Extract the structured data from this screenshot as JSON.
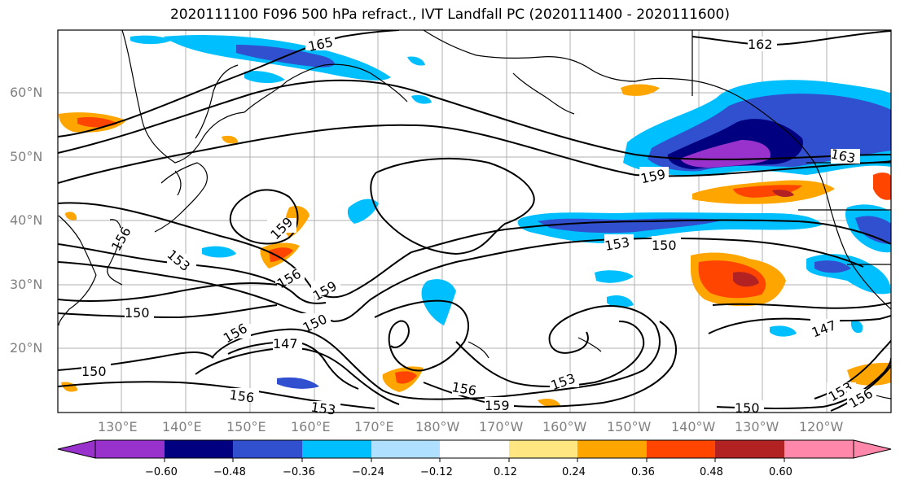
{
  "title": "2020111100 F096 500 hPa refract., IVT Landfall PC (2020111400 - 2020111600)",
  "lat_labels": [
    "60°N",
    "50°N",
    "40°N",
    "30°N",
    "20°N"
  ],
  "lon_labels": [
    "130°E",
    "140°E",
    "150°E",
    "160°E",
    "170°E",
    "180°W",
    "170°W",
    "160°W",
    "150°W",
    "140°W",
    "130°W",
    "120°W"
  ],
  "contour_labels": [
    "165",
    "162",
    "163",
    "159",
    "159",
    "156",
    "156",
    "153",
    "153",
    "150",
    "150",
    "159",
    "150",
    "147",
    "156",
    "150",
    "156",
    "153",
    "156",
    "159",
    "153",
    "147",
    "150",
    "153",
    "156"
  ],
  "colorbar": {
    "tick_labels": [
      "−0.60",
      "−0.48",
      "−0.36",
      "−0.24",
      "−0.12",
      "0.12",
      "0.24",
      "0.36",
      "0.48",
      "0.60"
    ],
    "colors": [
      "#9932cc",
      "#000080",
      "#3050d0",
      "#00bfff",
      "#b0e0ff",
      "#ffffff",
      "#ffe680",
      "#ffa500",
      "#ff4500",
      "#b22222",
      "#ff88aa"
    ]
  },
  "shading_colors": {
    "neg_strong": "#9932cc",
    "neg_dark": "#000080",
    "neg_mid": "#3050d0",
    "neg_light": "#00bfff",
    "pos_light": "#ffe680",
    "pos_mid": "#ffa500",
    "pos_strong": "#ff4500",
    "pos_dark": "#b22222"
  }
}
